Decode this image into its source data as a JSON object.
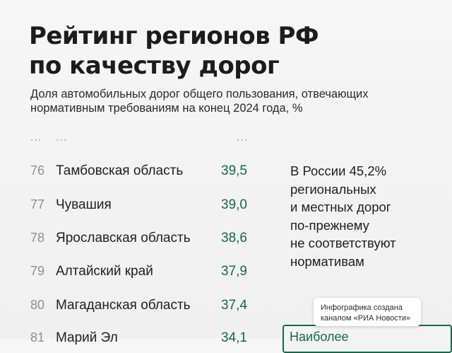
{
  "title": {
    "line1": "Рейтинг регионов РФ",
    "line2": "по качеству дорог"
  },
  "subtitle": {
    "line1": "Доля автомобильных дорог общего пользования, отвечающих",
    "line2": "нормативным требованиям на конец 2024 года, %"
  },
  "ellipsis": "...",
  "rows": [
    {
      "rank": "76",
      "name": "Тамбовская область",
      "value": "39,5"
    },
    {
      "rank": "77",
      "name": "Чувашия",
      "value": "39,0"
    },
    {
      "rank": "78",
      "name": "Ярославская область",
      "value": "38,6"
    },
    {
      "rank": "79",
      "name": "Алтайский край",
      "value": "37,9"
    },
    {
      "rank": "80",
      "name": "Магаданская область",
      "value": "37,4"
    },
    {
      "rank": "81",
      "name": "Марий Эл",
      "value": "34,1"
    }
  ],
  "note": {
    "line1": "В России 45,2%",
    "line2": "региональных",
    "line3": "и местных дорог",
    "line4": "по-прежнему",
    "line5": "не соответствуют",
    "line6": "нормативам"
  },
  "credit": {
    "line1": "Инфографика создана",
    "line2": "каналом «РИА Новости»"
  },
  "cutoff_box": {
    "label": "Наиболее"
  },
  "colors": {
    "accent": "#0f6b4a",
    "text": "#1f1f1f",
    "muted": "#8e8e8e",
    "background": "#f3f3f3"
  }
}
